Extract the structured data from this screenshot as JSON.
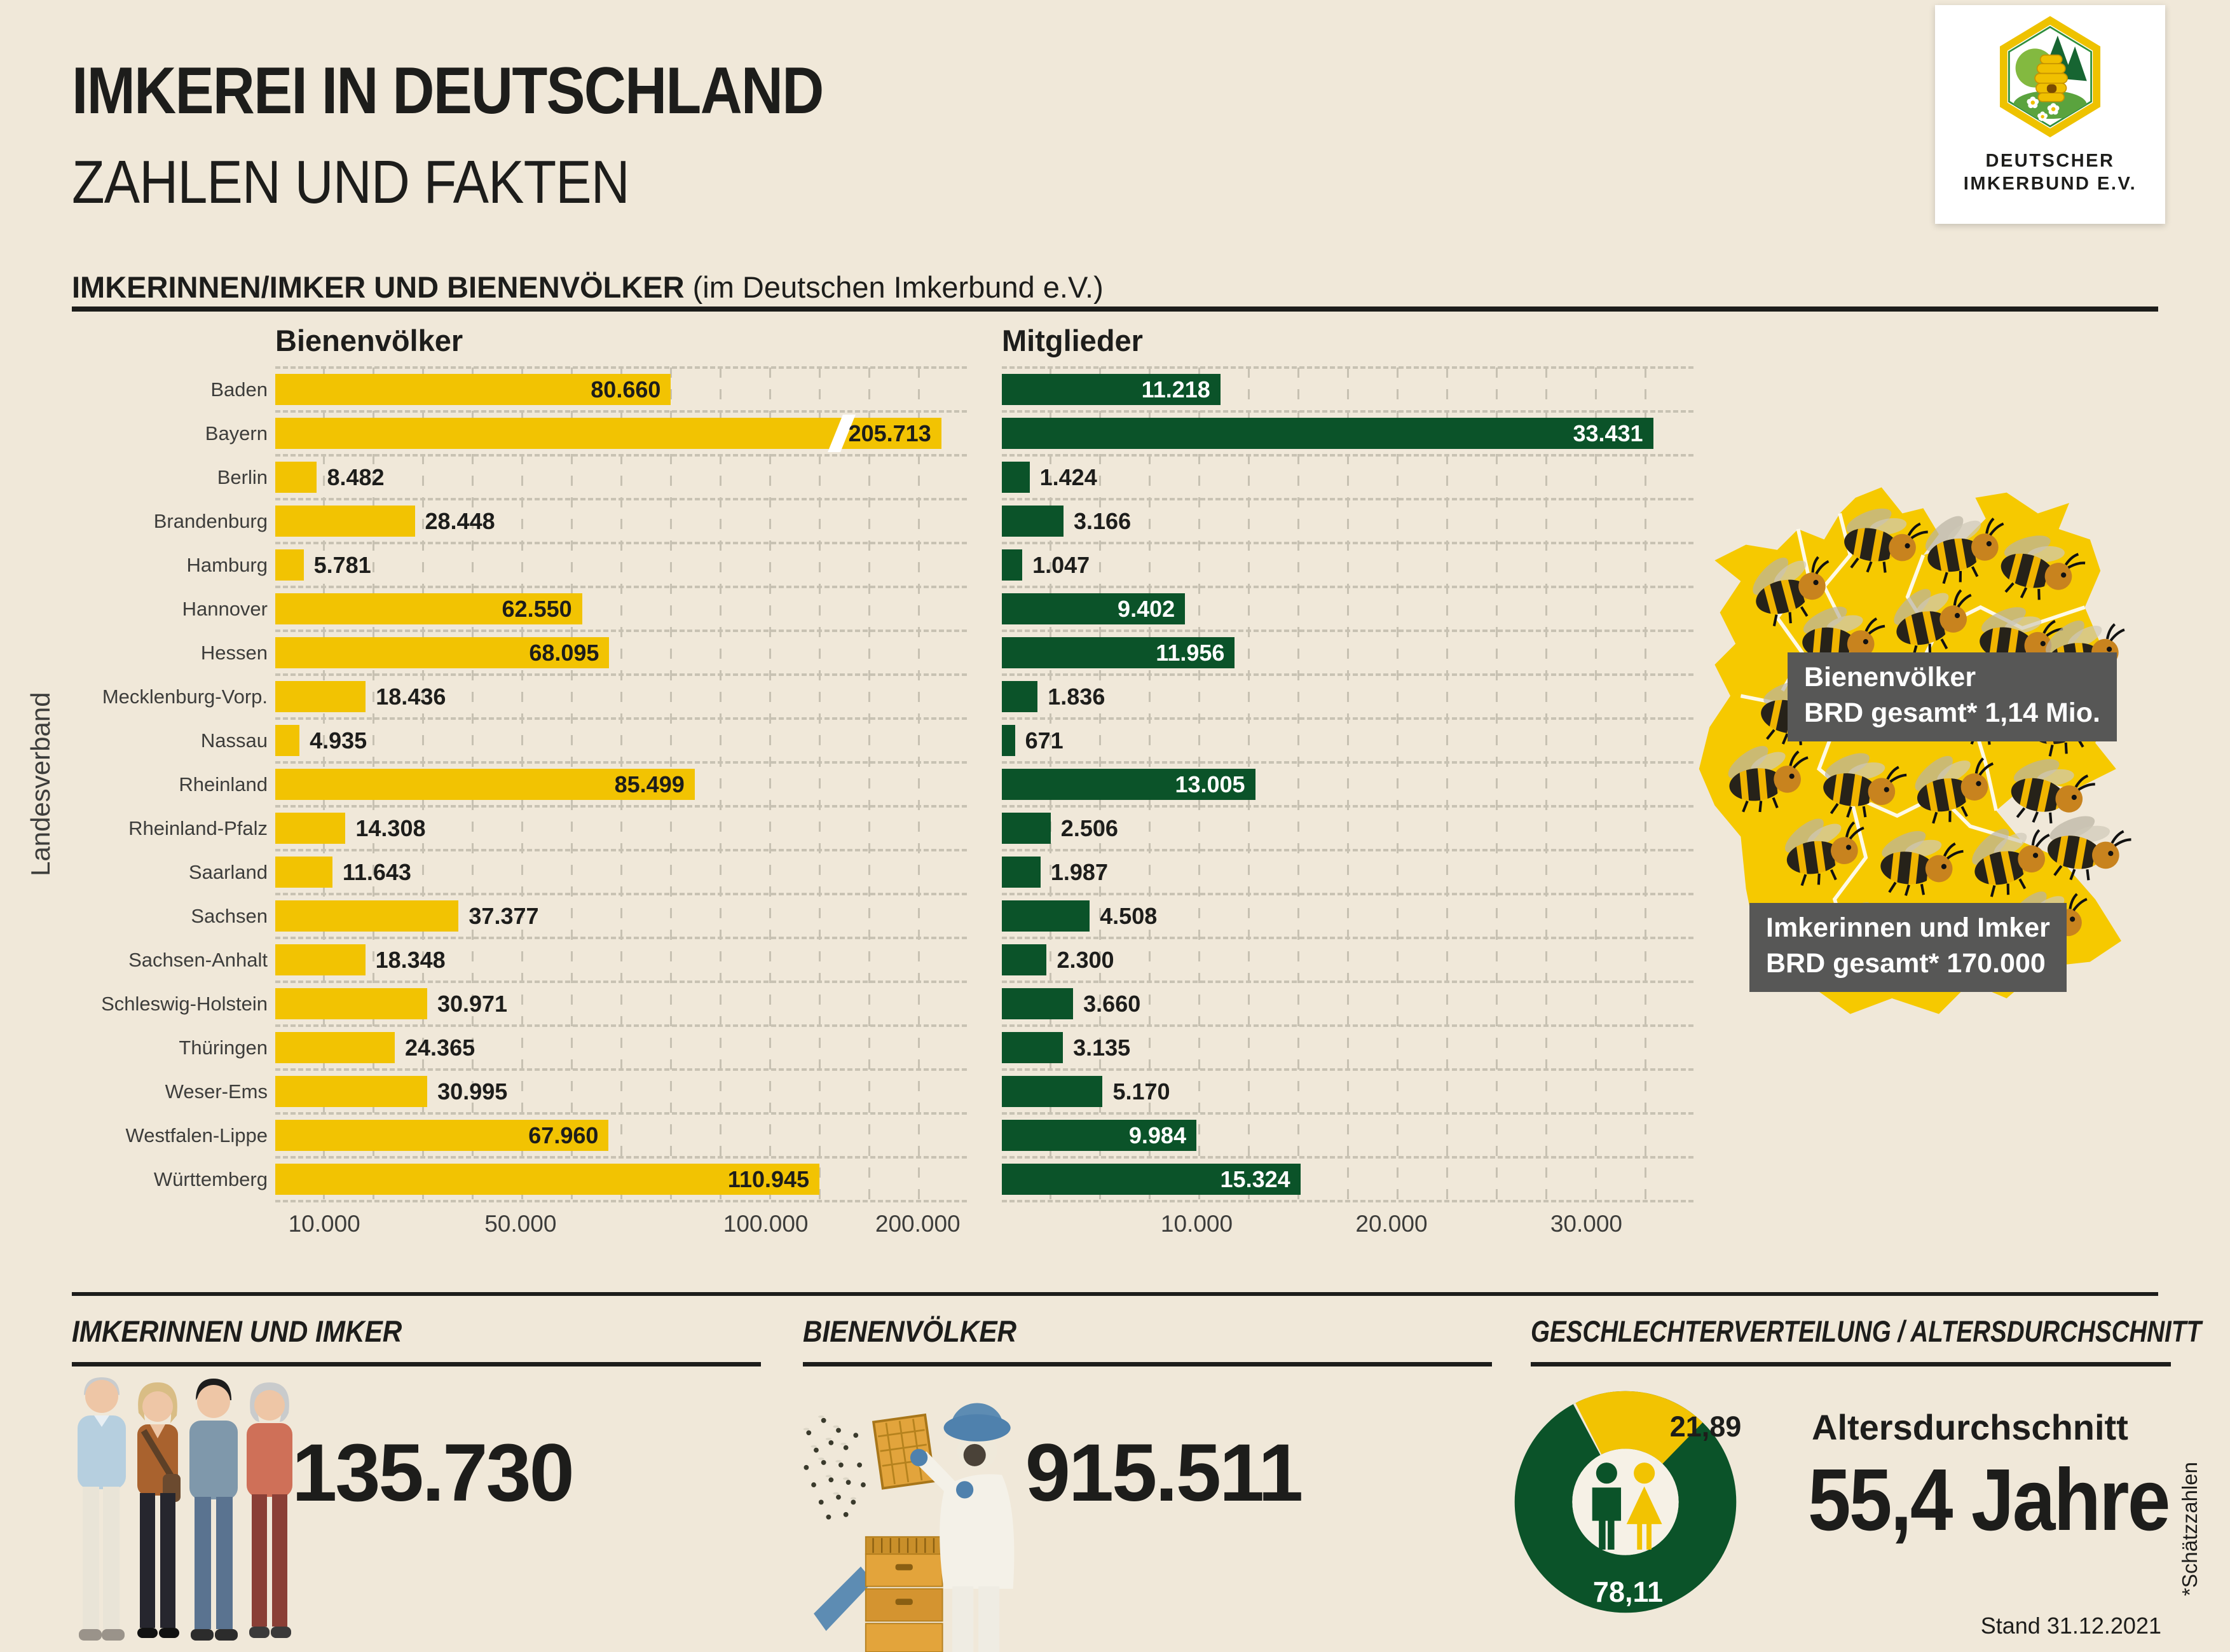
{
  "header": {
    "title1": "IMKEREI IN DEUTSCHLAND",
    "title2": "ZAHLEN UND FAKTEN"
  },
  "logo": {
    "line1": "DEUTSCHER",
    "line2": "IMKERBUND E.V."
  },
  "section": {
    "heading": "IMKERINNEN/IMKER UND BIENENVÖLKER",
    "subheading": "(im Deutschen Imkerbund e.V.)"
  },
  "chart_data": [
    {
      "type": "bar",
      "orientation": "horizontal",
      "ylabel": "Landesverband",
      "categories": [
        "Baden",
        "Bayern",
        "Berlin",
        "Brandenburg",
        "Hamburg",
        "Hannover",
        "Hessen",
        "Mecklenburg-Vorp.",
        "Nassau",
        "Rheinland",
        "Rheinland-Pfalz",
        "Saarland",
        "Sachsen",
        "Sachsen-Anhalt",
        "Schleswig-Holstein",
        "Thüringen",
        "Weser-Ems",
        "Westfalen-Lippe",
        "Württemberg"
      ],
      "series": [
        {
          "name": "Bienenvölker",
          "color": "#f2c302",
          "values": [
            80660,
            205713,
            8482,
            28448,
            5781,
            62550,
            68095,
            18436,
            4935,
            85499,
            14308,
            11643,
            37377,
            18348,
            30971,
            24365,
            30995,
            67960,
            110945
          ],
          "labels": [
            "80.660",
            "205.713",
            "8.482",
            "28.448",
            "5.781",
            "62.550",
            "68.095",
            "18.436",
            "4.935",
            "85.499",
            "14.308",
            "11.643",
            "37.377",
            "18.348",
            "30.971",
            "24.365",
            "30.995",
            "67.960",
            "110.945"
          ],
          "axis_ticks": [
            {
              "label": "10.000",
              "value": 10000
            },
            {
              "label": "50.000",
              "value": 50000
            },
            {
              "label": "100.000",
              "value": 100000
            },
            {
              "label": "200.000",
              "value": 200000
            }
          ],
          "axis_max_linear": 141000,
          "axis_break": {
            "category": "Bayern",
            "bar_width_pct": 96.3
          }
        },
        {
          "name": "Mitglieder",
          "color": "#0b5329",
          "values": [
            11218,
            33431,
            1424,
            3166,
            1047,
            9402,
            11956,
            1836,
            671,
            13005,
            2506,
            1987,
            4508,
            2300,
            3660,
            3135,
            5170,
            9984,
            15324
          ],
          "labels": [
            "11.218",
            "33.431",
            "1.424",
            "3.166",
            "1.047",
            "9.402",
            "11.956",
            "1.836",
            "671",
            "13.005",
            "2.506",
            "1.987",
            "4.508",
            "2.300",
            "3.660",
            "3.135",
            "5.170",
            "9.984",
            "15.324"
          ],
          "axis_ticks": [
            {
              "label": "10.000",
              "value": 10000
            },
            {
              "label": "20.000",
              "value": 20000
            },
            {
              "label": "30.000",
              "value": 30000
            }
          ],
          "axis_max_linear": 35500
        }
      ]
    },
    {
      "type": "pie",
      "title": "Geschlechterverteilung",
      "values": [
        21.89,
        78.11
      ],
      "labels": [
        "21,89",
        "78,11"
      ],
      "colors": [
        "#f2c302",
        "#0b5329"
      ],
      "legend": "none"
    }
  ],
  "map": {
    "box1": {
      "line1": "Bienenvölker",
      "line2": "BRD gesamt* 1,14 Mio."
    },
    "box2": {
      "line1": "Imkerinnen und Imker",
      "line2": "BRD gesamt* 170.000"
    }
  },
  "bottom": {
    "col1": {
      "title": "IMKERINNEN UND IMKER",
      "value": "135.730"
    },
    "col2": {
      "title": "BIENENVÖLKER",
      "value": "915.511"
    },
    "col3": {
      "title": "GESCHLECHTERVERTEILUNG / ALTERSDURCHSCHNITT",
      "age_label": "Altersdurchschnitt",
      "age_value": "55,4 Jahre"
    }
  },
  "footer": {
    "stand": "Stand 31.12.2021",
    "note": "*Schätzzahlen"
  }
}
